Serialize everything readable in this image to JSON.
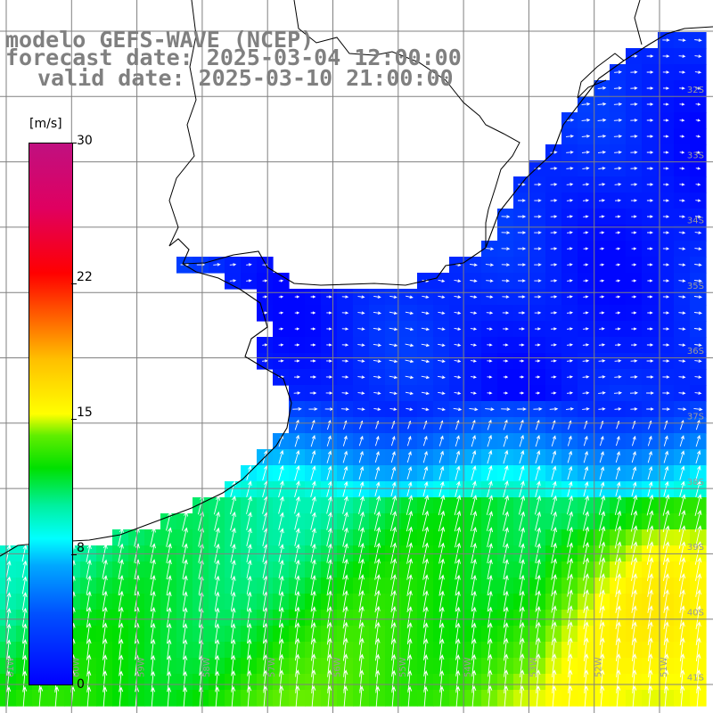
{
  "header": {
    "title": "modelo GEFS-WAVE (NCEP)",
    "forecast_date": "forecast date: 2025-03-04 12:00:00",
    "valid_date": "valid date: 2025-03-10 21:00:00"
  },
  "colorbar": {
    "unit": "[m/s]",
    "ticks": [
      "30",
      "22",
      "15",
      "8",
      "0"
    ],
    "range": [
      0,
      30
    ]
  },
  "map": {
    "lat_labels": [
      "32S",
      "33S",
      "34S",
      "35S",
      "36S",
      "37S",
      "38S",
      "39S",
      "40S",
      "41S"
    ],
    "lon_labels": [
      "61W",
      "60W",
      "59W",
      "58W",
      "57W",
      "56W",
      "55W",
      "54W",
      "53W",
      "52W",
      "51W"
    ],
    "grid": true,
    "colors": {
      "land": "#ffffff",
      "coastline": "#000000",
      "gridline": "#808080",
      "vectors": "#ffffff"
    }
  }
}
